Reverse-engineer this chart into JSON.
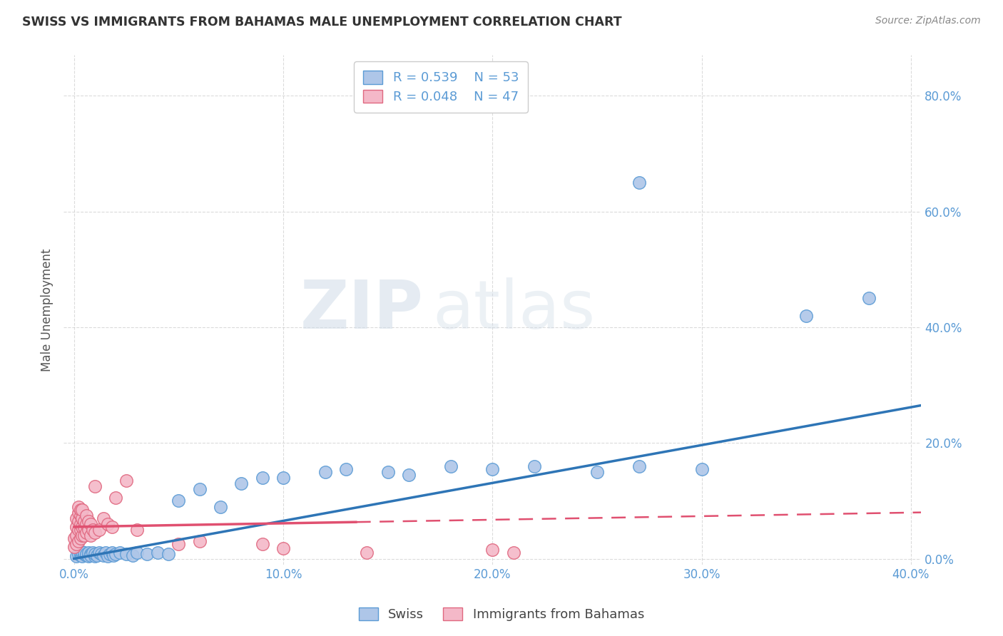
{
  "title": "SWISS VS IMMIGRANTS FROM BAHAMAS MALE UNEMPLOYMENT CORRELATION CHART",
  "source": "Source: ZipAtlas.com",
  "ylabel": "Male Unemployment",
  "xlabel": "",
  "xlim": [
    -0.005,
    0.405
  ],
  "ylim": [
    -0.01,
    0.87
  ],
  "xticks": [
    0.0,
    0.1,
    0.2,
    0.3,
    0.4
  ],
  "yticks": [
    0.0,
    0.2,
    0.4,
    0.6,
    0.8
  ],
  "xtick_labels": [
    "0.0%",
    "10.0%",
    "20.0%",
    "30.0%",
    "40.0%"
  ],
  "ytick_labels": [
    "0.0%",
    "20.0%",
    "40.0%",
    "60.0%",
    "80.0%"
  ],
  "swiss_color": "#aec6e8",
  "swiss_edge_color": "#5b9bd5",
  "bahamas_color": "#f4b8c8",
  "bahamas_edge_color": "#e06880",
  "trend_swiss_color": "#2e75b6",
  "trend_bahamas_color": "#e05070",
  "legend_R_swiss": "0.539",
  "legend_N_swiss": "53",
  "legend_R_bahamas": "0.048",
  "legend_N_bahamas": "47",
  "legend_label_swiss": "Swiss",
  "legend_label_bahamas": "Immigrants from Bahamas",
  "watermark_zip": "ZIP",
  "watermark_atlas": "atlas",
  "background_color": "#ffffff",
  "grid_color": "#cccccc",
  "axis_color": "#5b9bd5",
  "title_color": "#333333",
  "swiss_x": [
    0.001,
    0.002,
    0.003,
    0.003,
    0.004,
    0.004,
    0.005,
    0.005,
    0.006,
    0.006,
    0.007,
    0.007,
    0.008,
    0.008,
    0.009,
    0.01,
    0.01,
    0.011,
    0.012,
    0.013,
    0.014,
    0.015,
    0.016,
    0.017,
    0.018,
    0.019,
    0.02,
    0.022,
    0.025,
    0.028,
    0.03,
    0.035,
    0.04,
    0.045,
    0.05,
    0.06,
    0.07,
    0.08,
    0.09,
    0.1,
    0.12,
    0.13,
    0.15,
    0.16,
    0.18,
    0.2,
    0.22,
    0.25,
    0.27,
    0.3,
    0.27,
    0.35,
    0.38
  ],
  "swiss_y": [
    0.005,
    0.008,
    0.006,
    0.01,
    0.005,
    0.012,
    0.008,
    0.01,
    0.006,
    0.008,
    0.005,
    0.01,
    0.008,
    0.006,
    0.01,
    0.005,
    0.008,
    0.006,
    0.01,
    0.008,
    0.006,
    0.01,
    0.005,
    0.008,
    0.01,
    0.006,
    0.008,
    0.01,
    0.008,
    0.006,
    0.01,
    0.008,
    0.01,
    0.008,
    0.1,
    0.12,
    0.09,
    0.13,
    0.14,
    0.14,
    0.15,
    0.155,
    0.15,
    0.145,
    0.16,
    0.155,
    0.16,
    0.15,
    0.16,
    0.155,
    0.65,
    0.42,
    0.45
  ],
  "bahamas_x": [
    0.0,
    0.0,
    0.001,
    0.001,
    0.001,
    0.001,
    0.002,
    0.002,
    0.002,
    0.002,
    0.002,
    0.003,
    0.003,
    0.003,
    0.003,
    0.003,
    0.004,
    0.004,
    0.004,
    0.004,
    0.005,
    0.005,
    0.005,
    0.006,
    0.006,
    0.006,
    0.007,
    0.007,
    0.008,
    0.008,
    0.009,
    0.01,
    0.01,
    0.012,
    0.014,
    0.016,
    0.018,
    0.02,
    0.025,
    0.03,
    0.05,
    0.06,
    0.09,
    0.1,
    0.14,
    0.2,
    0.21
  ],
  "bahamas_y": [
    0.02,
    0.035,
    0.025,
    0.04,
    0.055,
    0.07,
    0.03,
    0.05,
    0.065,
    0.08,
    0.09,
    0.035,
    0.05,
    0.06,
    0.075,
    0.085,
    0.04,
    0.055,
    0.07,
    0.085,
    0.04,
    0.055,
    0.065,
    0.045,
    0.06,
    0.075,
    0.05,
    0.065,
    0.04,
    0.06,
    0.05,
    0.045,
    0.125,
    0.05,
    0.07,
    0.06,
    0.055,
    0.105,
    0.135,
    0.05,
    0.025,
    0.03,
    0.025,
    0.018,
    0.01,
    0.015,
    0.01
  ],
  "trend_swiss_x_start": 0.0,
  "trend_swiss_x_end": 0.405,
  "trend_swiss_y_start": 0.0,
  "trend_swiss_y_end": 0.265,
  "trend_bahamas_x_solid_start": 0.0,
  "trend_bahamas_x_solid_end": 0.135,
  "trend_bahamas_x_dash_start": 0.135,
  "trend_bahamas_x_dash_end": 0.405,
  "trend_bahamas_y_start": 0.055,
  "trend_bahamas_y_mid": 0.075,
  "trend_bahamas_y_end": 0.08
}
